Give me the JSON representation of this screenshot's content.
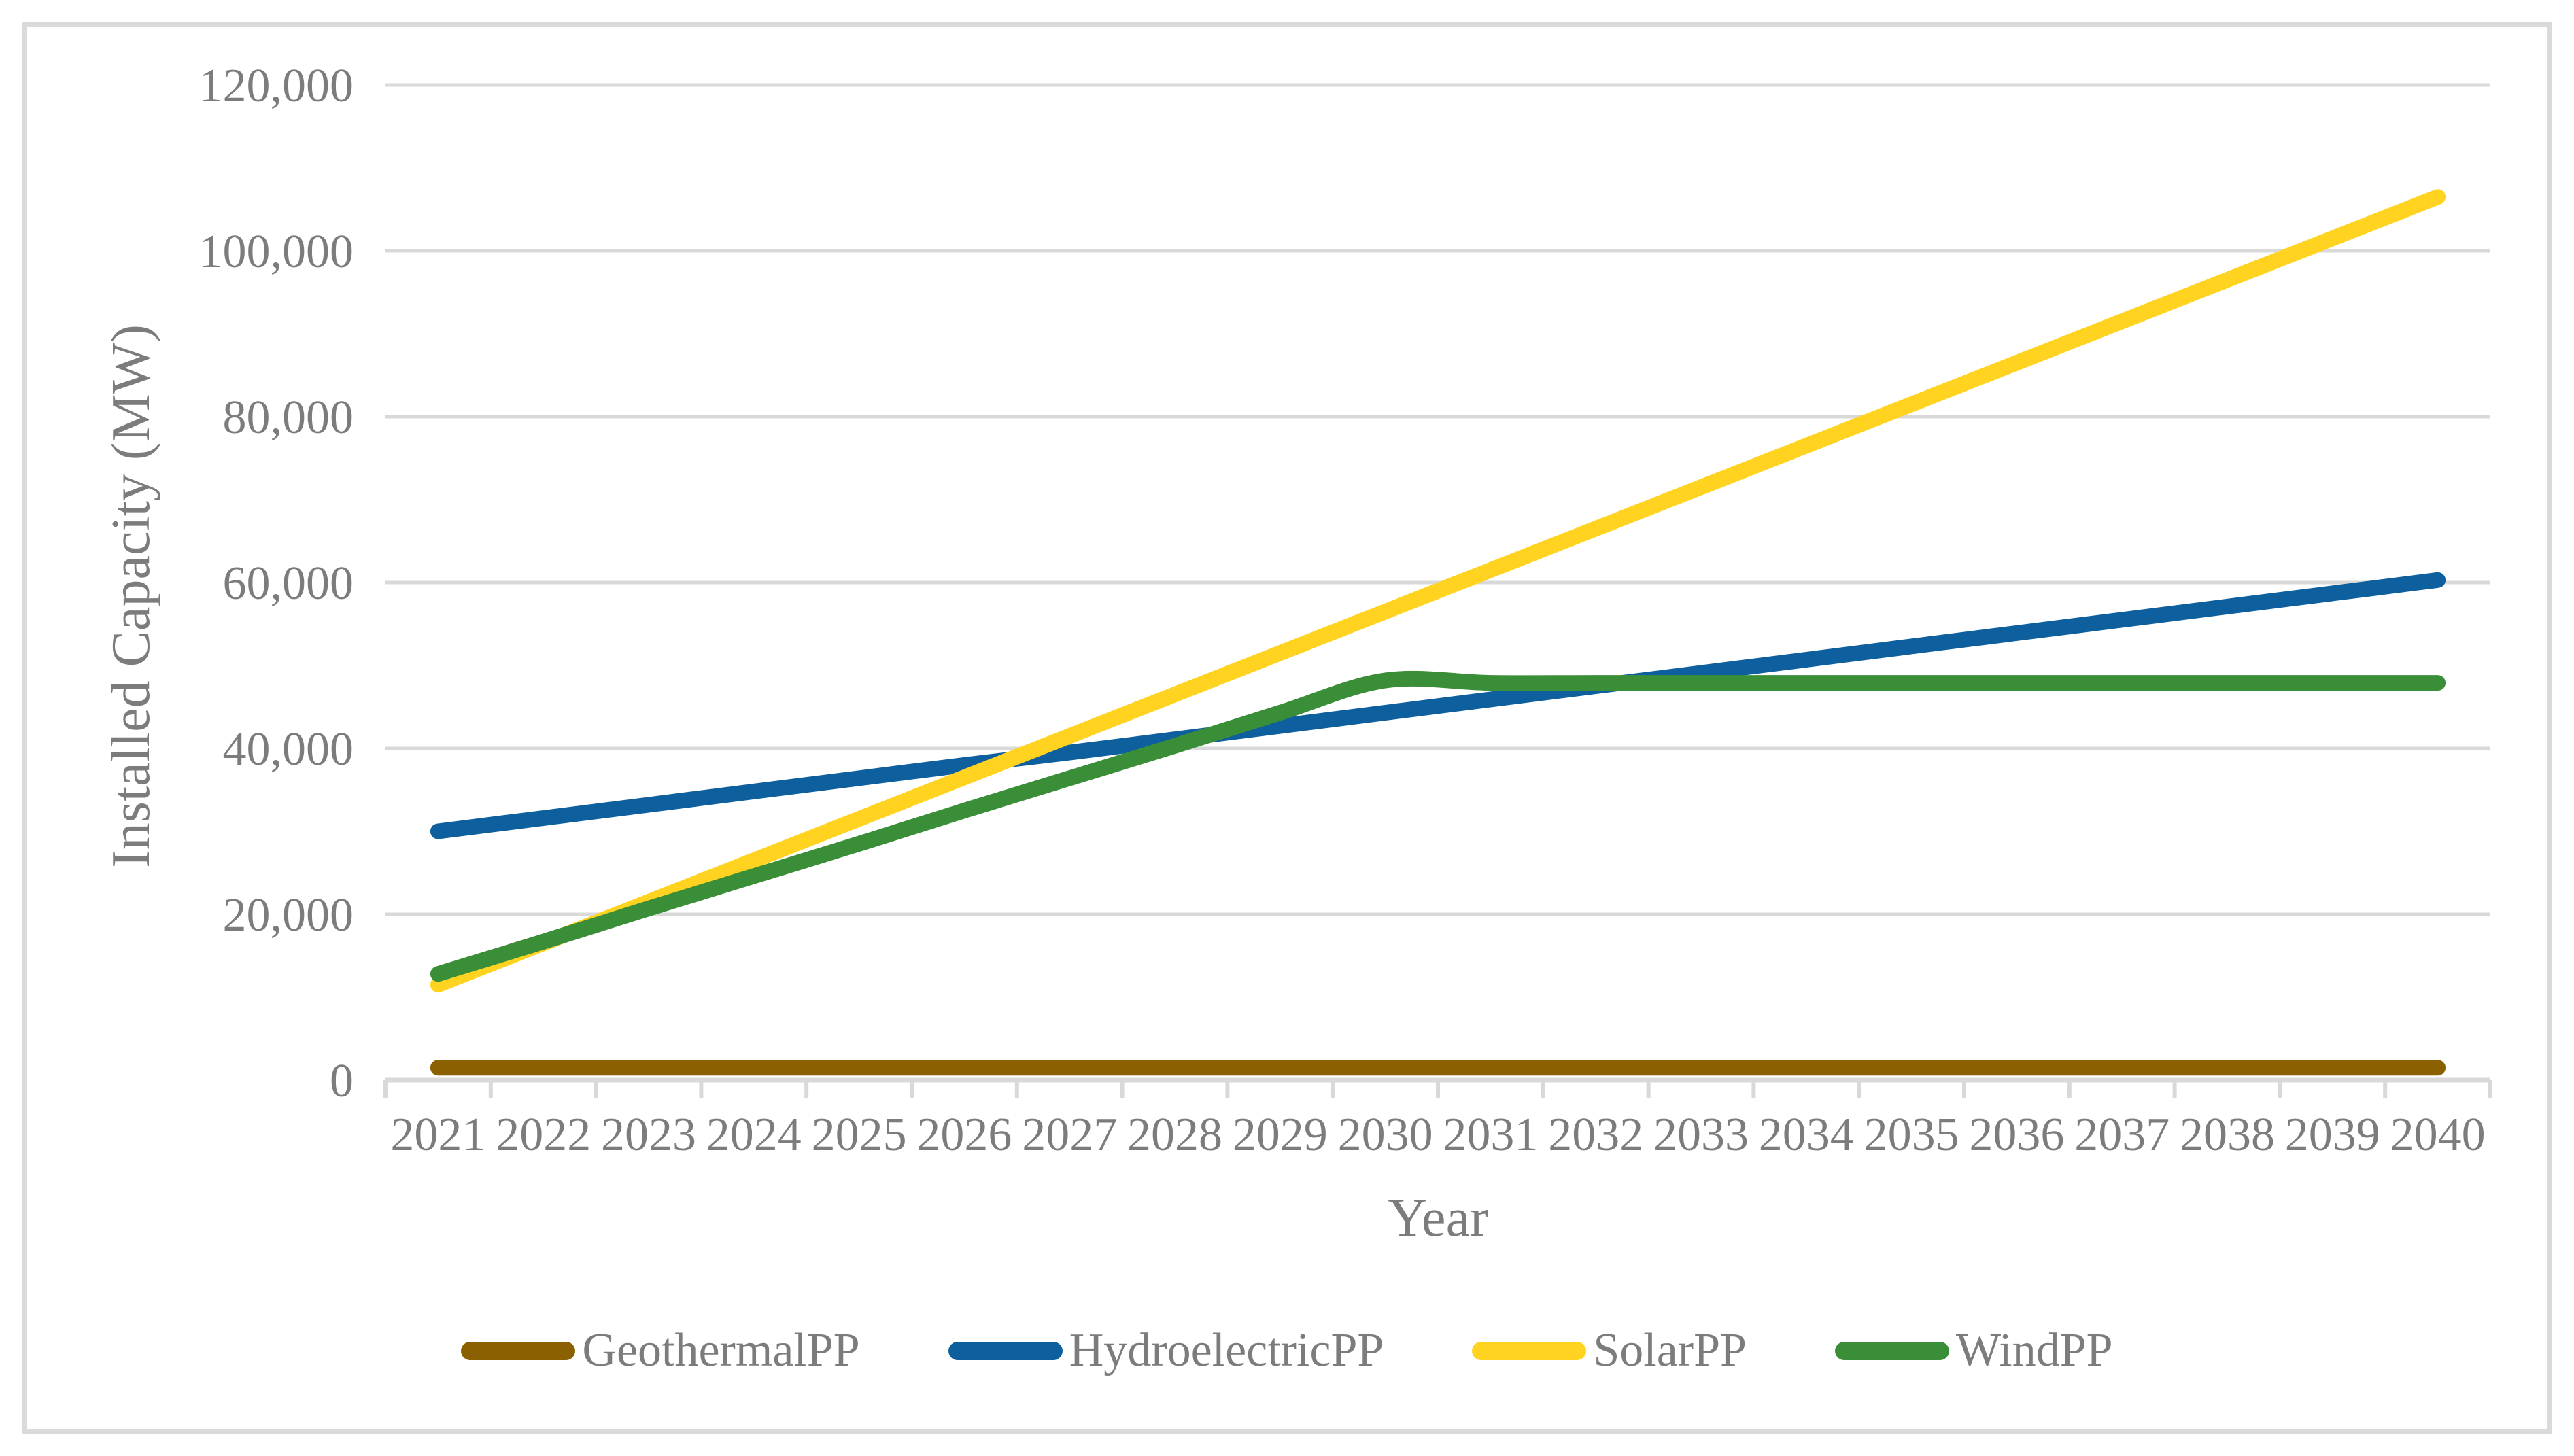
{
  "figure": {
    "x_axis_title": "Year",
    "y_axis_title": "Installed Capacity (MW)",
    "text_color": "#7C7C7C",
    "grid_color": "#D9D9D9",
    "background": "#FFFFFF"
  },
  "chart_data": {
    "type": "line",
    "title": "",
    "xlabel": "Year",
    "ylabel": "Installed Capacity (MW)",
    "grid": "horizontal",
    "legend_position": "bottom",
    "smoothed_lines": true,
    "ylim": [
      0,
      120000
    ],
    "y_ticks": [
      {
        "value": 0,
        "label": "0"
      },
      {
        "value": 20000,
        "label": "20,000"
      },
      {
        "value": 40000,
        "label": "40,000"
      },
      {
        "value": 60000,
        "label": "60,000"
      },
      {
        "value": 80000,
        "label": "80,000"
      },
      {
        "value": 100000,
        "label": "100,000"
      },
      {
        "value": 120000,
        "label": "120,000"
      }
    ],
    "x": [
      2021,
      2022,
      2023,
      2024,
      2025,
      2026,
      2027,
      2028,
      2029,
      2030,
      2031,
      2032,
      2033,
      2034,
      2035,
      2036,
      2037,
      2038,
      2039,
      2040
    ],
    "series": [
      {
        "name": "GeothermalPP",
        "color": "#8A6000",
        "values": [
          1500,
          1500,
          1500,
          1500,
          1500,
          1500,
          1500,
          1500,
          1500,
          1500,
          1500,
          1500,
          1500,
          1500,
          1500,
          1500,
          1500,
          1500,
          1500,
          1500
        ]
      },
      {
        "name": "HydroelectricPP",
        "color": "#0E5F9E",
        "values": [
          30000,
          31600,
          33200,
          34800,
          36400,
          38000,
          39500,
          41100,
          42700,
          44300,
          45900,
          47500,
          49100,
          50700,
          52300,
          53900,
          55500,
          57100,
          58700,
          60300
        ]
      },
      {
        "name": "SolarPP",
        "color": "#FFD320",
        "values": [
          11500,
          16500,
          21500,
          26500,
          31500,
          36500,
          41500,
          46500,
          51500,
          56500,
          61500,
          66500,
          71500,
          76500,
          81500,
          86500,
          91500,
          96500,
          101500,
          106500
        ]
      },
      {
        "name": "WindPP",
        "color": "#3B8E38",
        "values": [
          12800,
          16700,
          20700,
          24600,
          28500,
          32500,
          36400,
          40300,
          44300,
          48200,
          47900,
          47900,
          47900,
          47900,
          47900,
          47900,
          47900,
          47900,
          47900,
          47900
        ]
      }
    ]
  },
  "legend": {
    "items": [
      {
        "label": "GeothermalPP",
        "color": "#8A6000"
      },
      {
        "label": "HydroelectricPP",
        "color": "#0E5F9E"
      },
      {
        "label": "SolarPP",
        "color": "#FFD320"
      },
      {
        "label": "WindPP",
        "color": "#3B8E38"
      }
    ]
  }
}
